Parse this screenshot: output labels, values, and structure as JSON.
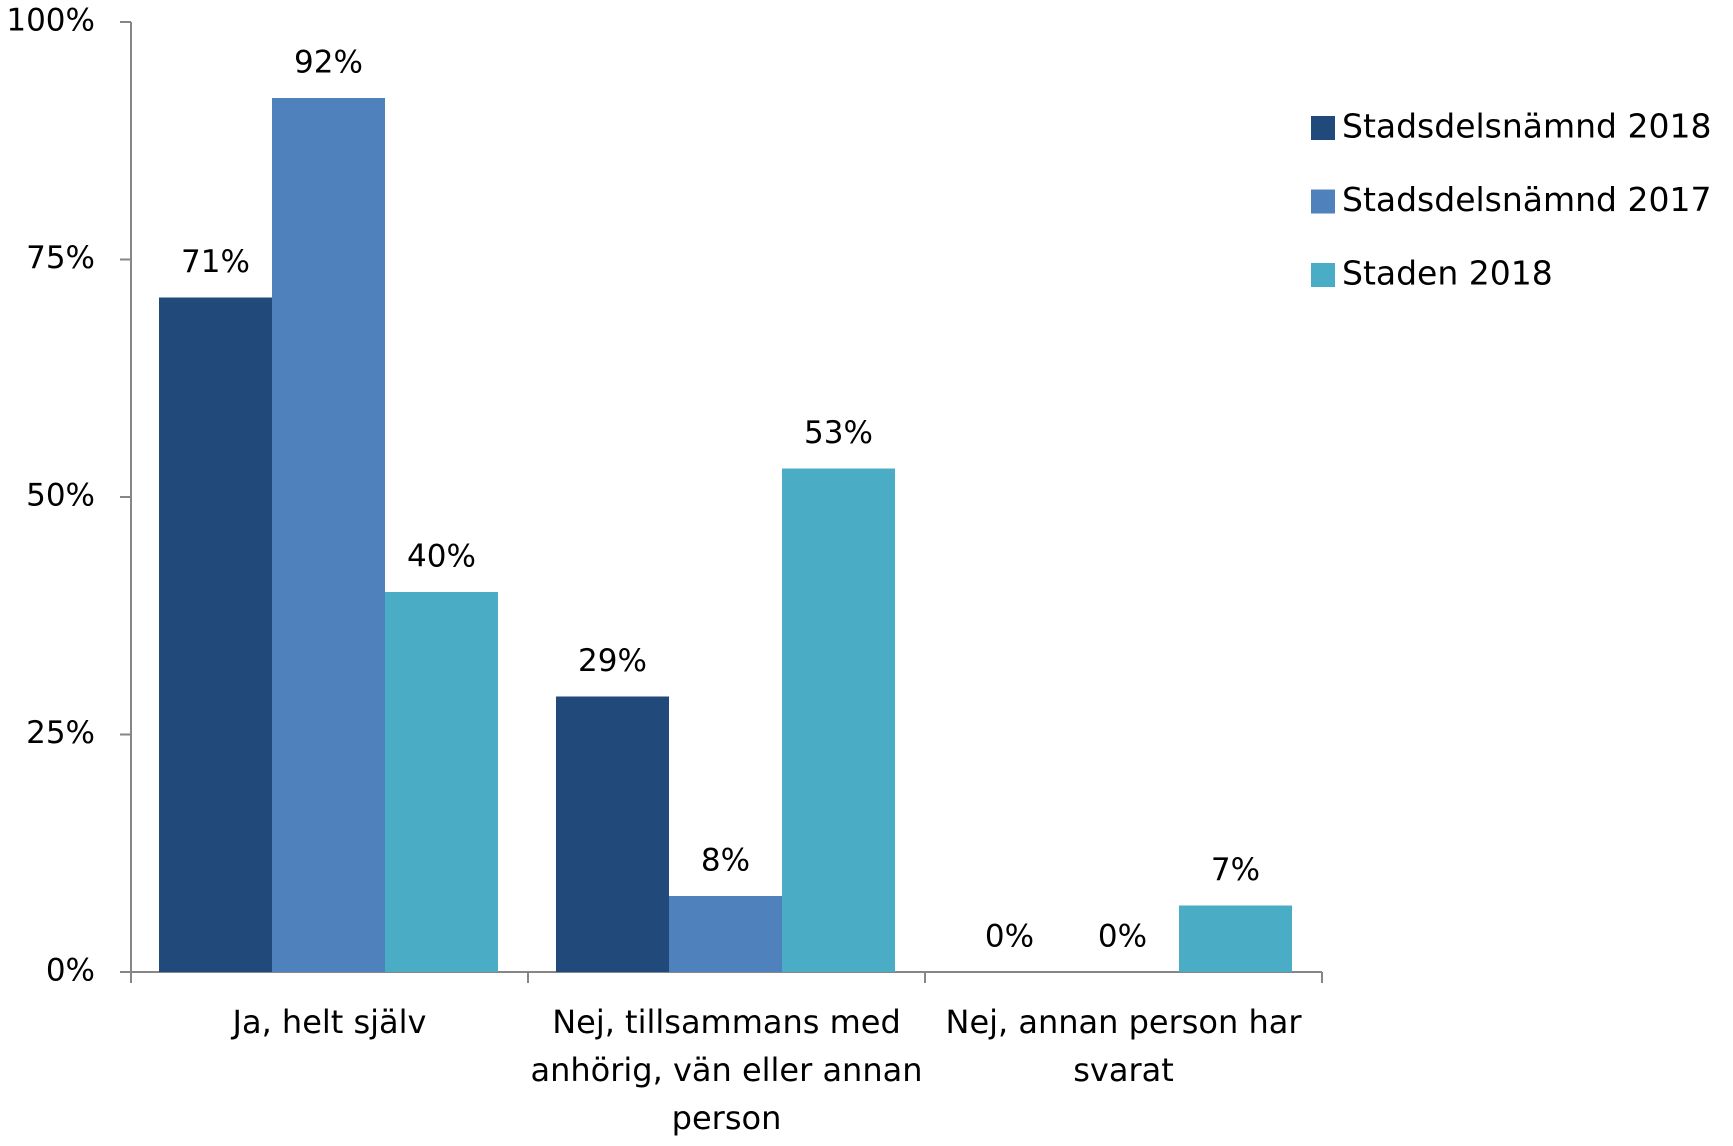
{
  "chart_data": {
    "type": "bar",
    "categories": [
      "Ja, helt själv",
      "Nej, tillsammans med anhörig, vän eller annan person",
      "Nej,  annan person har svarat"
    ],
    "series": [
      {
        "name": "Stadsdelsnämnd 2018",
        "color": "#214a7b",
        "values": [
          71,
          29,
          0
        ],
        "value_labels": [
          "71%",
          "29%",
          "0%"
        ]
      },
      {
        "name": "Stadsdelsnämnd 2017",
        "color": "#4f81bd",
        "values": [
          92,
          8,
          0
        ],
        "value_labels": [
          "92%",
          "8%",
          "0%"
        ]
      },
      {
        "name": "Staden 2018",
        "color": "#4bacc6",
        "values": [
          40,
          53,
          7
        ],
        "value_labels": [
          "40%",
          "53%",
          "7%"
        ]
      }
    ],
    "ylim": [
      0,
      100
    ],
    "yticks": [
      {
        "value": 0,
        "label": "0%"
      },
      {
        "value": 25,
        "label": "25%"
      },
      {
        "value": 50,
        "label": "50%"
      },
      {
        "value": 75,
        "label": "75%"
      },
      {
        "value": 100,
        "label": "100%"
      }
    ],
    "grid": false,
    "legend": "right"
  }
}
